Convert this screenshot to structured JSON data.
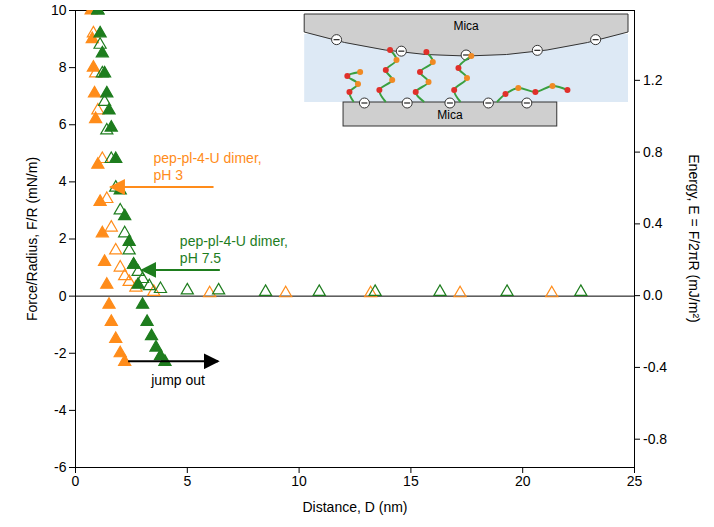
{
  "chart_data": {
    "type": "scatter",
    "xlabel": "Distance, D (nm)",
    "ylabel": "Force/Radius, F/R (mN/m)",
    "y2label": "Energy, E = F/2πR (mJ/m²)",
    "xlim": [
      0,
      25
    ],
    "xticks": [
      0,
      5,
      10,
      15,
      20,
      25
    ],
    "ylim": [
      -6,
      10
    ],
    "yticks": [
      -6,
      -4,
      -2,
      0,
      2,
      4,
      6,
      8,
      10
    ],
    "y2lim": [
      -0.955,
      1.592
    ],
    "y2ticks": [
      -0.8,
      -0.4,
      {
        "value": 0,
        "label": "0.0"
      },
      0.4,
      0.8,
      1.2
    ],
    "grid": false,
    "series": [
      {
        "color": "#ff8c1a",
        "marker": "triangle",
        "x": [
          0.7,
          0.75,
          0.8,
          0.85,
          0.9,
          1.0,
          1.1,
          1.2,
          1.3,
          1.4,
          1.5,
          1.6,
          1.8,
          2.0,
          2.2
        ],
        "values": [
          10.0,
          9.0,
          8.0,
          7.1,
          6.2,
          4.6,
          3.3,
          2.2,
          1.2,
          0.4,
          -0.3,
          -0.9,
          -1.5,
          -2.0,
          -2.3
        ]
      },
      {
        "color": "#ff8c1a",
        "marker": "triangle-open",
        "x": [
          21.3,
          17.2,
          13.2,
          9.4,
          6.0,
          3.5,
          2.7,
          2.4,
          2.2,
          2.0,
          1.8,
          1.6,
          1.4,
          1.2,
          1.0,
          0.9,
          0.8
        ],
        "values": [
          0.1,
          0.1,
          0.1,
          0.1,
          0.1,
          0.15,
          0.3,
          0.5,
          0.7,
          1.0,
          1.6,
          2.4,
          3.4,
          4.8,
          6.5,
          7.8,
          9.2
        ]
      },
      {
        "color": "#1e7d1e",
        "marker": "triangle",
        "x": [
          1.0,
          1.1,
          1.2,
          1.3,
          1.4,
          1.5,
          1.6,
          1.8,
          2.0,
          2.2,
          2.4,
          2.6,
          2.8,
          3.0,
          3.2,
          3.4,
          3.6,
          3.8,
          4.0
        ],
        "values": [
          10.0,
          9.2,
          8.5,
          7.8,
          7.1,
          6.5,
          5.9,
          4.8,
          3.7,
          2.8,
          1.9,
          1.1,
          0.4,
          -0.3,
          -0.9,
          -1.4,
          -1.8,
          -2.1,
          -2.3
        ]
      },
      {
        "color": "#1e7d1e",
        "marker": "triangle-open",
        "x": [
          22.6,
          19.3,
          16.3,
          13.4,
          10.9,
          8.5,
          6.4,
          5.0,
          3.8,
          3.3,
          3.0,
          2.8,
          2.6,
          2.4,
          2.2,
          2.0,
          1.8,
          1.6,
          1.4,
          1.3,
          1.2,
          1.1,
          1.0
        ],
        "values": [
          0.15,
          0.15,
          0.15,
          0.15,
          0.15,
          0.15,
          0.2,
          0.2,
          0.25,
          0.35,
          0.6,
          0.85,
          1.1,
          1.6,
          2.2,
          3.0,
          3.8,
          4.8,
          5.8,
          6.8,
          7.8,
          8.8,
          10.0
        ]
      }
    ],
    "annotations": [
      {
        "text": "pep-pl-4-U dimer,\npH 3",
        "x": 1.5,
        "y": 3.8,
        "color": "#ff8c1a"
      },
      {
        "text": "pep-pl-4-U dimer,\npH 7.5",
        "x": 2.9,
        "y": 0.9,
        "color": "#1e7d1e"
      },
      {
        "text": "jump out",
        "x": 6.4,
        "y": -2.3,
        "color": "#000000"
      }
    ],
    "inset_labels": [
      "Mica",
      "Mica"
    ]
  }
}
